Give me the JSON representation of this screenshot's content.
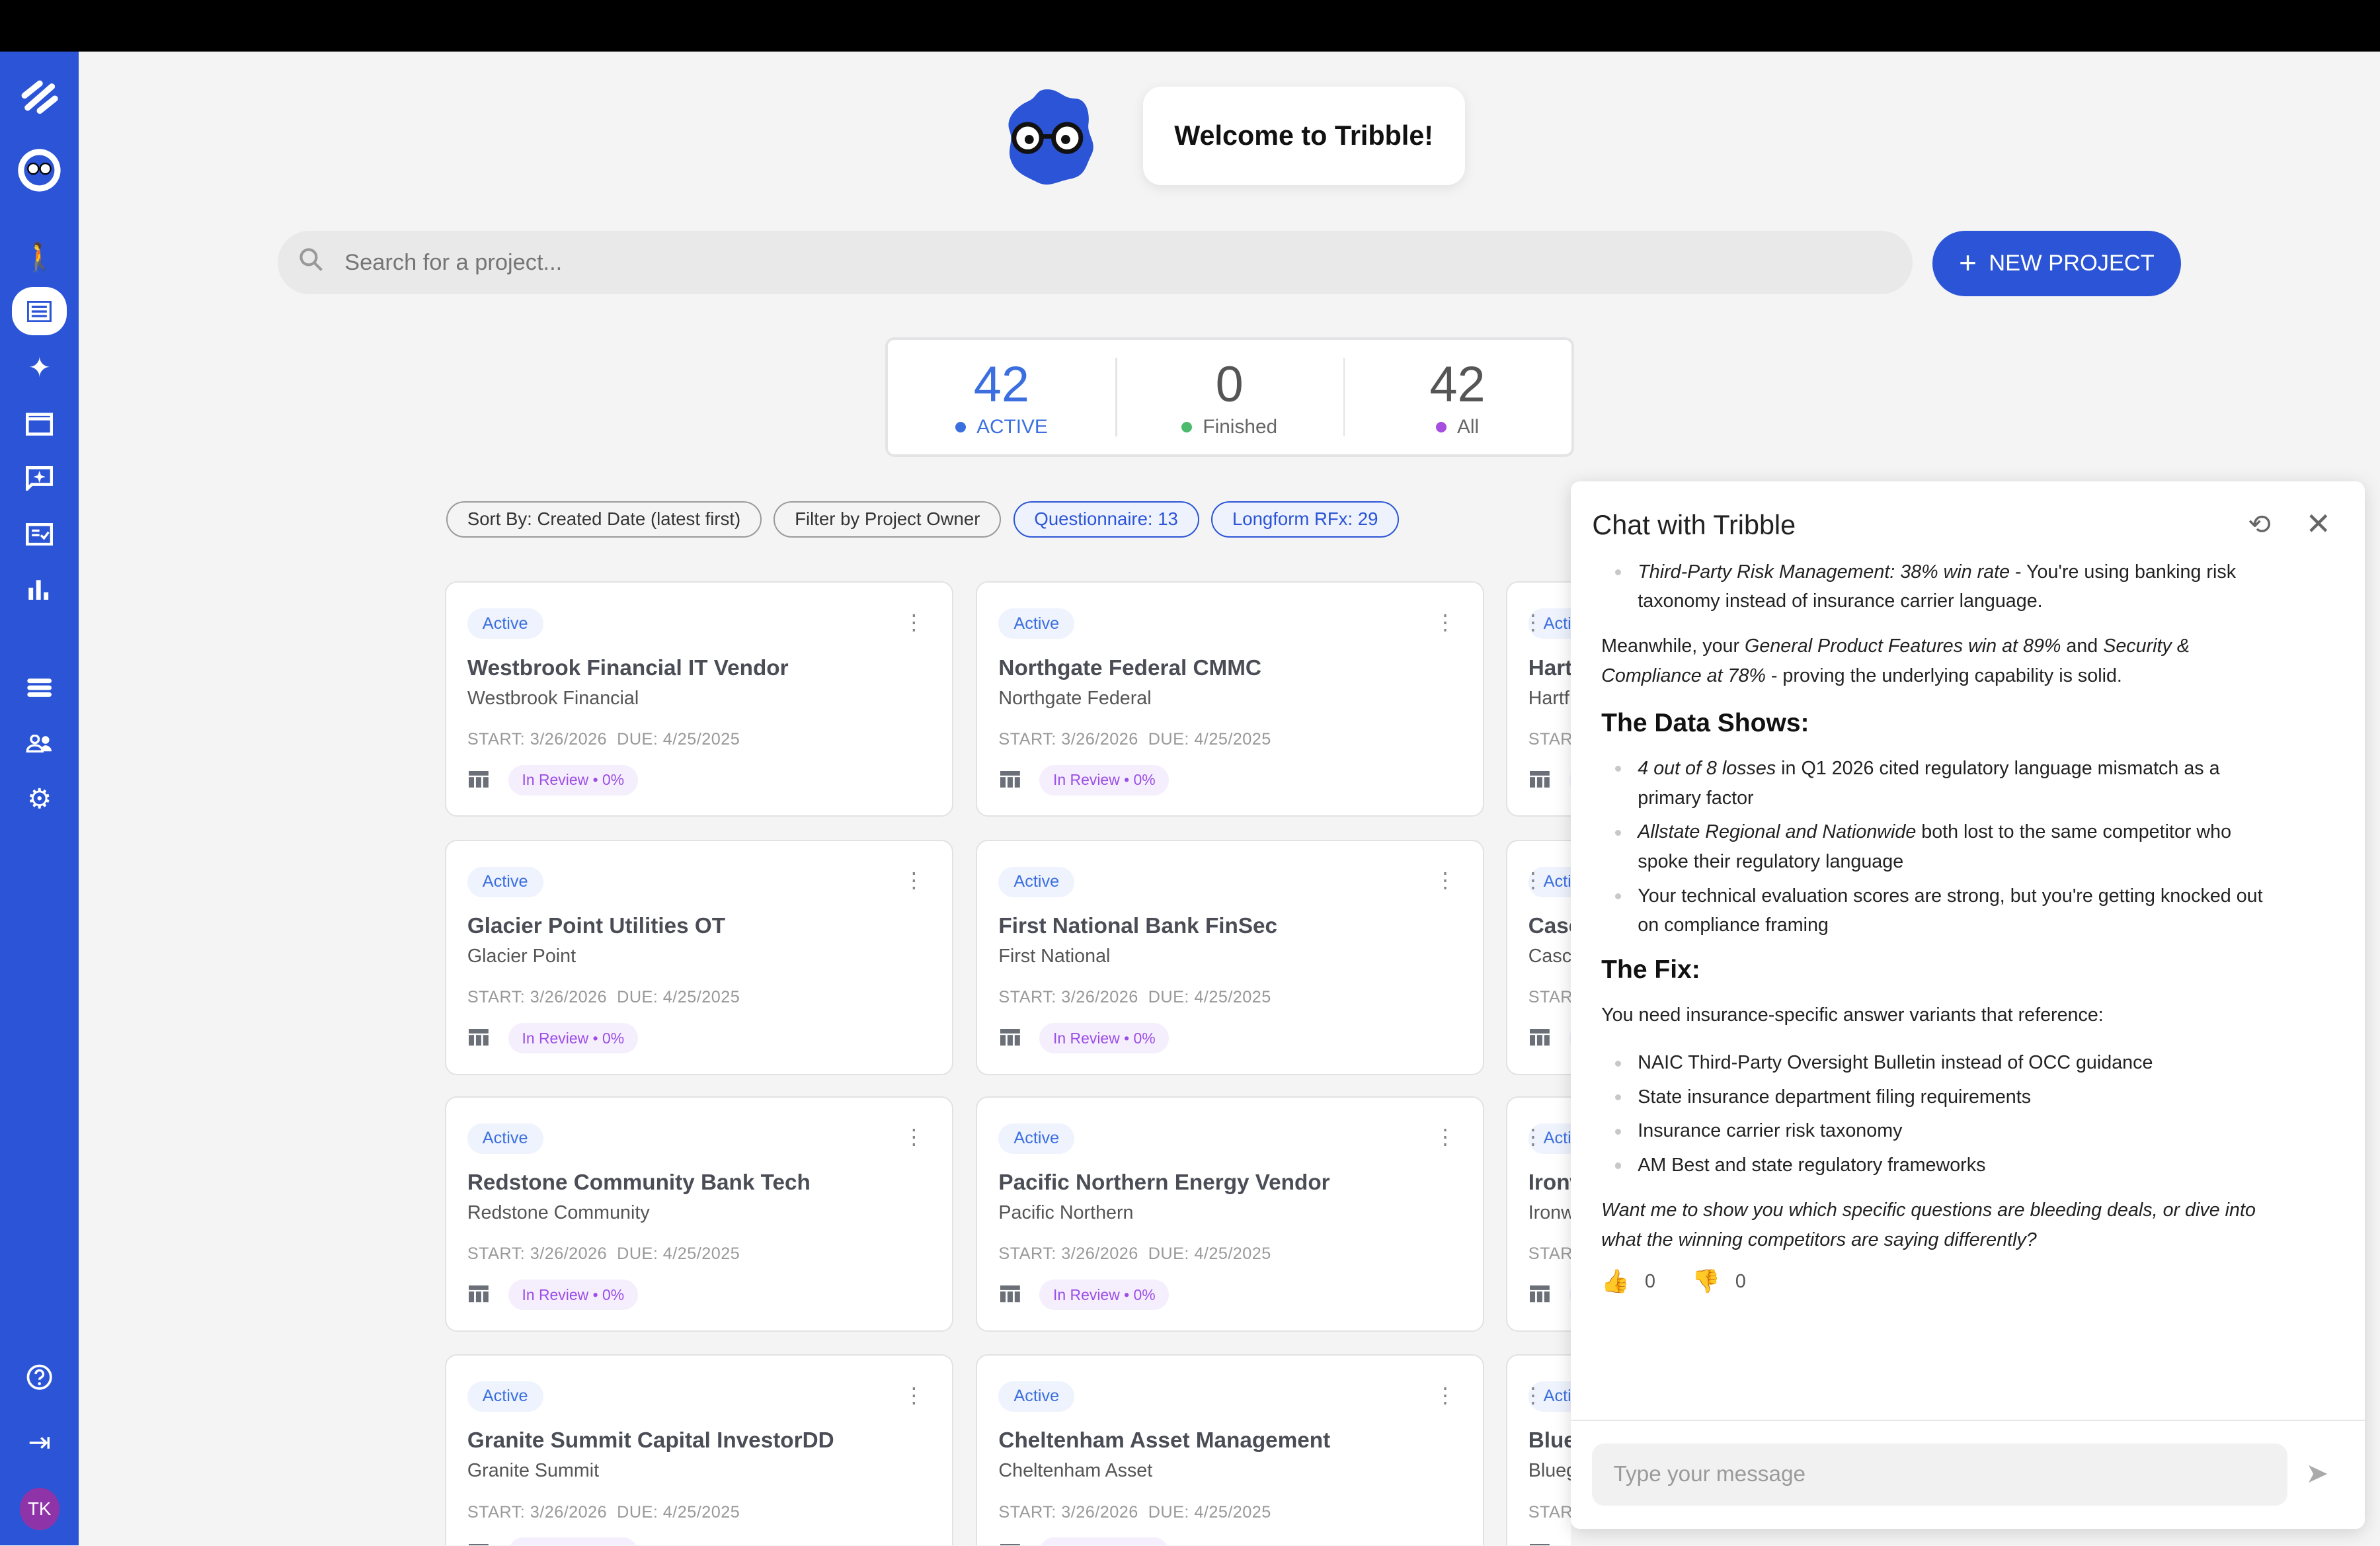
{
  "welcome": "Welcome to Tribble!",
  "search": {
    "placeholder": "Search for a project..."
  },
  "new_project": {
    "icon": "plus-icon",
    "label": "NEW PROJECT"
  },
  "stats": [
    {
      "value": "42",
      "label": "ACTIVE",
      "color": "#3b6fe0"
    },
    {
      "value": "0",
      "label": "Finished",
      "color": "#4cbb6c"
    },
    {
      "value": "42",
      "label": "All",
      "color": "#a64ee0"
    }
  ],
  "filters": [
    "Sort By: Created Date (latest first)",
    "Filter by Project Owner",
    "Questionnaire: 13",
    "Longform RFx: 29"
  ],
  "card_common": {
    "status": "Active",
    "review": "In Review • 0%"
  },
  "cards": [
    {
      "title": "Westbrook Financial IT Vendor",
      "company": "Westbrook Financial",
      "dates": "START: 3/26/2026  DUE: 4/25/2025"
    },
    {
      "title": "Northgate Federal CMMC",
      "company": "Northgate Federal",
      "dates": "START: 3/26/2026  DUE: 4/25/2025"
    },
    {
      "title": "Hartf",
      "company": "Hartf",
      "dates": "STAR"
    },
    {
      "title": "Glacier Point Utilities OT",
      "company": "Glacier Point",
      "dates": "START: 3/26/2026  DUE: 4/25/2025"
    },
    {
      "title": "First National Bank FinSec",
      "company": "First National",
      "dates": "START: 3/26/2026  DUE: 4/25/2025"
    },
    {
      "title": "Casc",
      "company": "Casc",
      "dates": "STAR"
    },
    {
      "title": "Redstone Community Bank Tech",
      "company": "Redstone Community",
      "dates": "START: 3/26/2026  DUE: 4/25/2025"
    },
    {
      "title": "Pacific Northern Energy Vendor",
      "company": "Pacific Northern",
      "dates": "START: 3/26/2026  DUE: 4/25/2025"
    },
    {
      "title": "Ironw",
      "company": "Ironw",
      "dates": "STAR"
    },
    {
      "title": "Granite Summit Capital InvestorDD",
      "company": "Granite Summit",
      "dates": "START: 3/26/2026  DUE: 4/25/2025"
    },
    {
      "title": "Cheltenham Asset Management",
      "company": "Cheltenham Asset",
      "dates": "START: 3/26/2026  DUE: 4/25/2025"
    },
    {
      "title": "Blueg",
      "company": "Blueg",
      "dates": "STAR"
    }
  ],
  "sidebar": {
    "avatar": "TK"
  },
  "chat": {
    "title": "Chat with Tribble",
    "bullet1_em": "Third-Party Risk Management: 38% win rate",
    "bullet1_rest": " - You're using banking risk taxonomy instead of insurance carrier language.",
    "p1_a": "Meanwhile, your ",
    "p1_em1": "General Product Features win at 89%",
    "p1_b": " and ",
    "p1_em2": "Security & Compliance at 78%",
    "p1_c": " - proving the underlying capability is solid.",
    "h_data": "The Data Shows:",
    "data_items": [
      {
        "em": "4 out of 8 losses",
        "rest": " in Q1 2026 cited regulatory language mismatch as a primary factor"
      },
      {
        "em": "Allstate Regional and Nationwide",
        "rest": " both lost to the same competitor who spoke their regulatory language"
      },
      {
        "em": "",
        "rest": "Your technical evaluation scores are strong, but you're getting knocked out on compliance framing"
      }
    ],
    "h_fix": "The Fix:",
    "fix_intro": "You need insurance-specific answer variants that reference:",
    "fix_items": [
      "NAIC Third-Party Oversight Bulletin instead of OCC guidance",
      "State insurance department filing requirements",
      "Insurance carrier risk taxonomy",
      "AM Best and state regulatory frameworks"
    ],
    "closing": "Want me to show you which specific questions are bleeding deals, or dive into what the winning competitors are saying differently?",
    "thumbs_up": "0",
    "thumbs_down": "0",
    "input_placeholder": "Type your message"
  }
}
